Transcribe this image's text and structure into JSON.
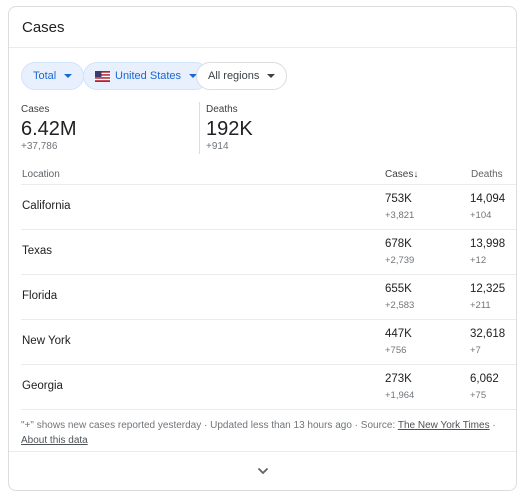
{
  "card": {
    "title": "Cases"
  },
  "filters": [
    {
      "label": "Total"
    },
    {
      "label": "United States"
    },
    {
      "label": "All regions"
    }
  ],
  "summary": {
    "cases": {
      "label": "Cases",
      "value": "6.42M",
      "delta": "+37,786"
    },
    "deaths": {
      "label": "Deaths",
      "value": "192K",
      "delta": "+914"
    }
  },
  "table": {
    "headers": {
      "location": "Location",
      "cases": "Cases",
      "deaths": "Deaths"
    },
    "sort_indicator": "↓",
    "rows": [
      {
        "location": "California",
        "cases": "753K",
        "cases_delta": "+3,821",
        "deaths": "14,094",
        "deaths_delta": "+104"
      },
      {
        "location": "Texas",
        "cases": "678K",
        "cases_delta": "+2,739",
        "deaths": "13,998",
        "deaths_delta": "+12"
      },
      {
        "location": "Florida",
        "cases": "655K",
        "cases_delta": "+2,583",
        "deaths": "12,325",
        "deaths_delta": "+211"
      },
      {
        "location": "New York",
        "cases": "447K",
        "cases_delta": "+756",
        "deaths": "32,618",
        "deaths_delta": "+7"
      },
      {
        "location": "Georgia",
        "cases": "273K",
        "cases_delta": "+1,964",
        "deaths": "6,062",
        "deaths_delta": "+75"
      }
    ]
  },
  "footer": {
    "note": "\"+\" shows new cases reported yesterday · Updated less than 13 hours ago · Source: ",
    "source_link": "The New York Times",
    "separator": " ·",
    "about_link": "About this data"
  },
  "icons": {
    "expand": "chevron-down-icon",
    "flag": "us-flag-icon",
    "sort": "arrow-down-icon"
  },
  "colors": {
    "accent": "#1967d2",
    "chip_bg": "#e8f0fe",
    "muted": "#70757a"
  }
}
